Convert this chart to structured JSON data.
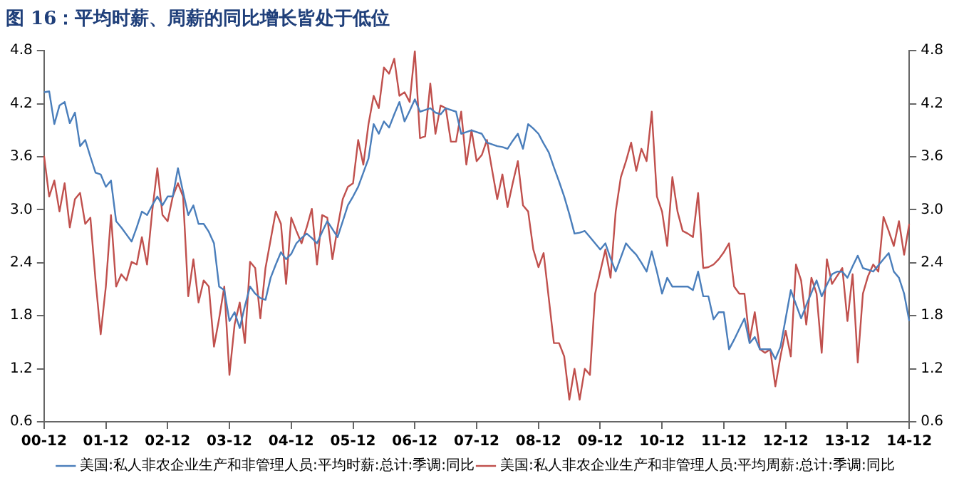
{
  "chart_data": {
    "type": "line",
    "title": "图 16：平均时薪、周薪的同比增长皆处于低位",
    "categories": [
      "00-12",
      null,
      null,
      null,
      null,
      null,
      null,
      null,
      null,
      null,
      null,
      null,
      "01-12",
      null,
      null,
      null,
      null,
      null,
      null,
      null,
      null,
      null,
      null,
      null,
      "02-12",
      null,
      null,
      null,
      null,
      null,
      null,
      null,
      null,
      null,
      null,
      null,
      "03-12",
      null,
      null,
      null,
      null,
      null,
      null,
      null,
      null,
      null,
      null,
      null,
      "04-12",
      null,
      null,
      null,
      null,
      null,
      null,
      null,
      null,
      null,
      null,
      null,
      "05-12",
      null,
      null,
      null,
      null,
      null,
      null,
      null,
      null,
      null,
      null,
      null,
      "06-12",
      null,
      null,
      null,
      null,
      null,
      null,
      null,
      null,
      null,
      null,
      null,
      "07-12",
      null,
      null,
      null,
      null,
      null,
      null,
      null,
      null,
      null,
      null,
      null,
      "08-12",
      null,
      null,
      null,
      null,
      null,
      null,
      null,
      null,
      null,
      null,
      null,
      "09-12",
      null,
      null,
      null,
      null,
      null,
      null,
      null,
      null,
      null,
      null,
      null,
      "10-12",
      null,
      null,
      null,
      null,
      null,
      null,
      null,
      null,
      null,
      null,
      null,
      "11-12",
      null,
      null,
      null,
      null,
      null,
      null,
      null,
      null,
      null,
      null,
      null,
      "12-12",
      null,
      null,
      null,
      null,
      null,
      null,
      null,
      null,
      null,
      null,
      null,
      "13-12",
      null,
      null,
      null,
      null,
      null,
      null,
      null,
      null,
      null,
      null,
      null,
      "14-12"
    ],
    "ylim": [
      0.6,
      4.8
    ],
    "yticks": [
      0.6,
      1.2,
      1.8,
      2.4,
      {
        "value": 3,
        "label": "3.0"
      },
      3.6,
      4.2,
      4.8
    ],
    "y2lim": [
      0.6,
      4.8
    ],
    "y2ticks": [
      0.6,
      1.2,
      1.8,
      2.4,
      {
        "value": 3,
        "label": "3.0"
      },
      3.6,
      4.2,
      4.8
    ],
    "grid": false,
    "legend": "bottom",
    "marker": "none",
    "line_style": "solid",
    "series": [
      {
        "name": "美国:私人非农企业生产和非管理人员:平均时薪:总计:季调:同比",
        "color": "#4a7ebb",
        "values": [
          4.33,
          4.34,
          3.97,
          4.18,
          4.22,
          3.98,
          4.1,
          3.72,
          3.79,
          3.6,
          3.42,
          3.4,
          3.26,
          3.33,
          2.87,
          2.8,
          2.72,
          2.64,
          2.8,
          2.98,
          2.94,
          3.05,
          3.15,
          3.05,
          3.15,
          3.15,
          3.47,
          3.2,
          2.94,
          3.05,
          2.84,
          2.84,
          2.75,
          2.62,
          2.13,
          2.09,
          1.74,
          1.84,
          1.66,
          1.91,
          2.13,
          2.05,
          2.0,
          1.98,
          2.23,
          2.38,
          2.52,
          2.44,
          2.5,
          2.62,
          2.68,
          2.73,
          2.68,
          2.62,
          2.75,
          2.87,
          2.78,
          2.69,
          2.87,
          3.05,
          3.15,
          3.26,
          3.42,
          3.58,
          3.97,
          3.86,
          4.0,
          3.93,
          4.08,
          4.22,
          4.0,
          4.12,
          4.25,
          4.11,
          4.13,
          4.15,
          4.1,
          4.08,
          4.15,
          4.13,
          4.11,
          3.86,
          3.88,
          3.9,
          3.88,
          3.86,
          3.76,
          3.74,
          3.72,
          3.71,
          3.69,
          3.78,
          3.86,
          3.69,
          3.97,
          3.92,
          3.86,
          3.75,
          3.65,
          3.48,
          3.32,
          3.15,
          2.95,
          2.73,
          2.74,
          2.76,
          2.69,
          2.62,
          2.55,
          2.62,
          2.45,
          2.3,
          2.46,
          2.62,
          2.55,
          2.49,
          2.4,
          2.3,
          2.53,
          2.3,
          2.05,
          2.23,
          2.13,
          2.13,
          2.13,
          2.13,
          2.09,
          2.3,
          2.02,
          2.02,
          1.76,
          1.84,
          1.84,
          1.42,
          1.53,
          1.65,
          1.77,
          1.49,
          1.56,
          1.42,
          1.42,
          1.42,
          1.31,
          1.45,
          1.77,
          2.09,
          1.93,
          1.77,
          1.92,
          2.06,
          2.2,
          2.02,
          2.15,
          2.27,
          2.3,
          2.3,
          2.23,
          2.36,
          2.48,
          2.34,
          2.32,
          2.3,
          2.37,
          2.44,
          2.51,
          2.3,
          2.23,
          2.05,
          1.74
        ]
      },
      {
        "name": "美国:私人非农企业生产和非管理人员:平均周薪:总计:季调:同比",
        "color": "#c0504d",
        "values": [
          3.61,
          3.15,
          3.33,
          2.98,
          3.3,
          2.8,
          3.12,
          3.19,
          2.84,
          2.91,
          2.2,
          1.59,
          2.13,
          2.94,
          2.13,
          2.27,
          2.2,
          2.41,
          2.38,
          2.69,
          2.38,
          2.98,
          3.47,
          2.94,
          2.87,
          3.15,
          3.3,
          3.15,
          2.02,
          2.44,
          1.95,
          2.2,
          2.13,
          1.45,
          1.77,
          2.13,
          1.13,
          1.7,
          1.95,
          1.49,
          2.41,
          2.34,
          1.77,
          2.34,
          2.66,
          2.98,
          2.84,
          2.16,
          2.91,
          2.76,
          2.62,
          2.8,
          3.01,
          2.38,
          2.94,
          2.91,
          2.44,
          2.8,
          3.12,
          3.26,
          3.3,
          3.79,
          3.51,
          3.97,
          4.29,
          4.15,
          4.61,
          4.54,
          4.71,
          4.29,
          4.33,
          4.22,
          4.8,
          3.81,
          3.83,
          4.43,
          3.86,
          4.18,
          4.15,
          3.77,
          3.77,
          4.11,
          3.51,
          3.9,
          3.55,
          3.62,
          3.79,
          3.45,
          3.12,
          3.4,
          3.03,
          3.3,
          3.55,
          3.05,
          2.98,
          2.55,
          2.35,
          2.51,
          2.0,
          1.49,
          1.49,
          1.34,
          0.85,
          1.2,
          0.85,
          1.2,
          1.13,
          2.05,
          2.3,
          2.55,
          2.23,
          2.98,
          3.37,
          3.55,
          3.76,
          3.44,
          3.69,
          3.55,
          4.11,
          3.15,
          2.98,
          2.59,
          3.37,
          2.98,
          2.76,
          2.73,
          2.69,
          3.19,
          2.34,
          2.35,
          2.38,
          2.44,
          2.52,
          2.62,
          2.13,
          2.05,
          2.05,
          1.52,
          1.84,
          1.42,
          1.38,
          1.42,
          1.0,
          1.34,
          1.63,
          1.34,
          2.38,
          2.2,
          1.7,
          2.23,
          2.05,
          1.38,
          2.44,
          2.16,
          2.25,
          2.34,
          1.74,
          2.27,
          1.27,
          2.05,
          2.25,
          2.38,
          2.3,
          2.92,
          2.76,
          2.59,
          2.87,
          2.49,
          2.84
        ]
      }
    ]
  }
}
